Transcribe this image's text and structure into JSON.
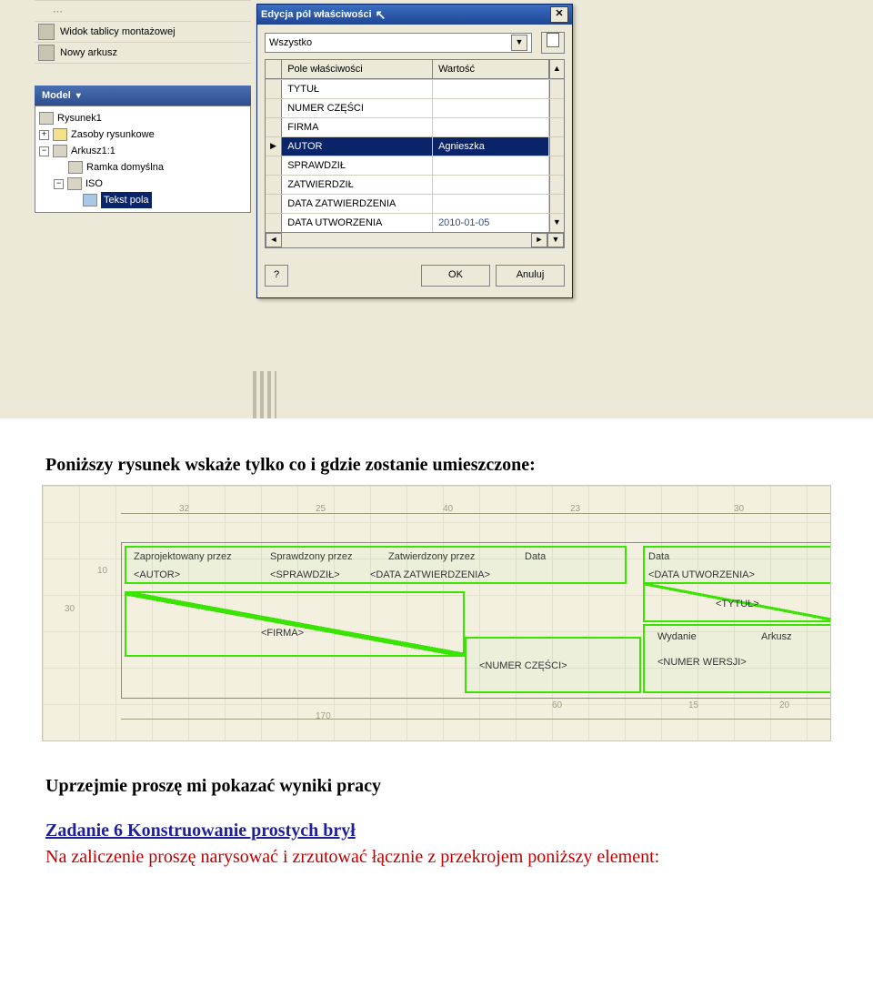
{
  "left_menu": {
    "item1": "Widok tablicy montażowej",
    "item2": "Nowy arkusz"
  },
  "model_bar": "Model",
  "tree": {
    "rysunek": "Rysunek1",
    "zasoby": "Zasoby rysunkowe",
    "arkusz": "Arkusz1:1",
    "ramka": "Ramka domyślna",
    "iso": "ISO",
    "tekst": "Tekst pola"
  },
  "dialog": {
    "title": "Edycja pól właściwości",
    "combo_value": "Wszystko",
    "col1": "Pole właściwości",
    "col2": "Wartość",
    "rows": [
      {
        "f": "TYTUŁ",
        "v": ""
      },
      {
        "f": "NUMER CZĘŚCI",
        "v": ""
      },
      {
        "f": "FIRMA",
        "v": ""
      },
      {
        "f": "AUTOR",
        "v": "Agnieszka"
      },
      {
        "f": "SPRAWDZIŁ",
        "v": ""
      },
      {
        "f": "ZATWIERDZIŁ",
        "v": ""
      },
      {
        "f": "DATA ZATWIERDZENIA",
        "v": ""
      },
      {
        "f": "DATA UTWORZENIA",
        "v": "2010-01-05"
      }
    ],
    "ok": "OK",
    "cancel": "Anuluj",
    "help": "?"
  },
  "doc": {
    "p1": "Poniższy rysunek wskaże tylko co i gdzie zostanie umieszczone:",
    "p2": "Uprzejmie proszę mi pokazać  wyniki pracy",
    "p3": "Zadanie 6  Konstruowanie prostych brył",
    "p4": "Na zaliczenie proszę narysować i zrzutować łącznie z przekrojem poniższy element:"
  },
  "diagram": {
    "top_dims": [
      "32",
      "25",
      "40",
      "23",
      "30"
    ],
    "left_30": "30",
    "left_10": "10",
    "bottom_170": "170",
    "bottom_60": "60",
    "bottom_15": "15",
    "bottom_20": "20",
    "labels": {
      "zaproj": "Zaprojektowany przez",
      "sprawdz": "Sprawdzony przez",
      "zatw": "Zatwierdzony przez",
      "data1": "Data",
      "data2": "Data",
      "autor": "<AUTOR>",
      "sprawdzil": "<SPRAWDZIŁ>",
      "datazatw": "<DATA ZATWIERDZENIA>",
      "datautw": "<DATA UTWORZENIA>",
      "firma": "<FIRMA>",
      "tytul": "<TYTUŁ>",
      "numerczesci": "<NUMER CZĘŚCI>",
      "wydanie": "Wydanie",
      "arkusz": "Arkusz",
      "numerwersji": "<NUMER WERSJI>"
    },
    "colors": {
      "bg": "#f3f0e0",
      "grid": "#e4e0ce",
      "dim": "#a0a080",
      "box": "#39e400"
    }
  }
}
